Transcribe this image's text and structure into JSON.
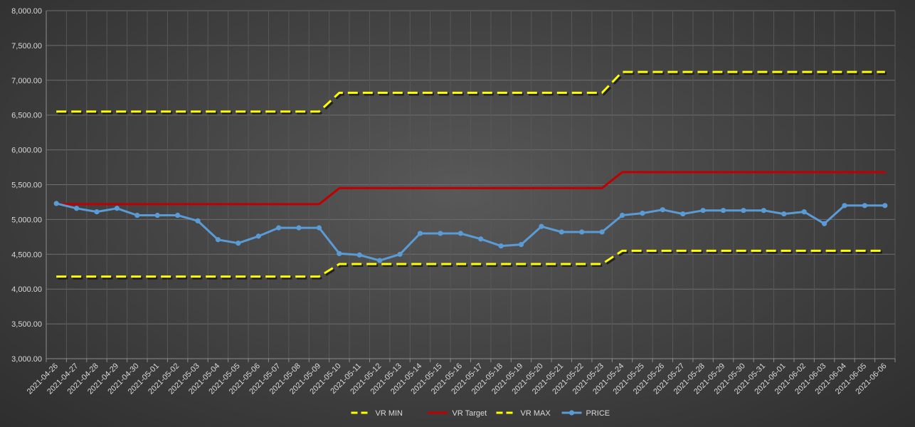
{
  "chart_data": {
    "type": "line",
    "title": "",
    "xlabel": "",
    "ylabel": "",
    "ylim": [
      3000,
      8000
    ],
    "y_tick_step": 500,
    "y_tick_format": "thousands-comma-2dp",
    "grid": "vertical-and-horizontal",
    "legend_position": "bottom",
    "x": [
      "2021-04-26",
      "2021-04-27",
      "2021-04-28",
      "2021-04-29",
      "2021-04-30",
      "2021-05-01",
      "2021-05-02",
      "2021-05-03",
      "2021-05-04",
      "2021-05-05",
      "2021-05-06",
      "2021-05-07",
      "2021-05-08",
      "2021-05-09",
      "2021-05-10",
      "2021-05-11",
      "2021-05-12",
      "2021-05-13",
      "2021-05-14",
      "2021-05-15",
      "2021-05-16",
      "2021-05-17",
      "2021-05-18",
      "2021-05-19",
      "2021-05-20",
      "2021-05-21",
      "2021-05-22",
      "2021-05-23",
      "2021-05-24",
      "2021-05-25",
      "2021-05-26",
      "2021-05-27",
      "2021-05-28",
      "2021-05-29",
      "2021-05-30",
      "2021-05-31",
      "2021-06-01",
      "2021-06-02",
      "2021-06-03",
      "2021-06-04",
      "2021-06-05",
      "2021-06-06"
    ],
    "series": [
      {
        "name": "VR MIN",
        "color": "#ffff00",
        "style": "dashed",
        "values": [
          4180,
          4180,
          4180,
          4180,
          4180,
          4180,
          4180,
          4180,
          4180,
          4180,
          4180,
          4180,
          4180,
          4180,
          4360,
          4360,
          4360,
          4360,
          4360,
          4360,
          4360,
          4360,
          4360,
          4360,
          4360,
          4360,
          4360,
          4360,
          4550,
          4550,
          4550,
          4550,
          4550,
          4550,
          4550,
          4550,
          4550,
          4550,
          4550,
          4550,
          4550,
          4550
        ]
      },
      {
        "name": "VR Target",
        "color": "#c00000",
        "style": "solid",
        "values": [
          5220,
          5220,
          5220,
          5220,
          5220,
          5220,
          5220,
          5220,
          5220,
          5220,
          5220,
          5220,
          5220,
          5220,
          5450,
          5450,
          5450,
          5450,
          5450,
          5450,
          5450,
          5450,
          5450,
          5450,
          5450,
          5450,
          5450,
          5450,
          5680,
          5680,
          5680,
          5680,
          5680,
          5680,
          5680,
          5680,
          5680,
          5680,
          5680,
          5680,
          5680,
          5680
        ]
      },
      {
        "name": "VR MAX",
        "color": "#ffff00",
        "style": "dashed",
        "values": [
          6550,
          6550,
          6550,
          6550,
          6550,
          6550,
          6550,
          6550,
          6550,
          6550,
          6550,
          6550,
          6550,
          6550,
          6820,
          6820,
          6820,
          6820,
          6820,
          6820,
          6820,
          6820,
          6820,
          6820,
          6820,
          6820,
          6820,
          6820,
          7120,
          7120,
          7120,
          7120,
          7120,
          7120,
          7120,
          7120,
          7120,
          7120,
          7120,
          7120,
          7120,
          7120
        ]
      },
      {
        "name": "PRICE",
        "color": "#5b9bd5",
        "style": "solid-markers",
        "values": [
          5230,
          5160,
          5110,
          5160,
          5060,
          5060,
          5060,
          4980,
          4710,
          4660,
          4760,
          4880,
          4880,
          4880,
          4510,
          4490,
          4410,
          4500,
          4800,
          4800,
          4800,
          4720,
          4620,
          4640,
          4900,
          4820,
          4820,
          4820,
          5060,
          5090,
          5140,
          5080,
          5130,
          5130,
          5130,
          5130,
          5080,
          5110,
          4940,
          5200,
          5200,
          5200
        ]
      }
    ]
  }
}
